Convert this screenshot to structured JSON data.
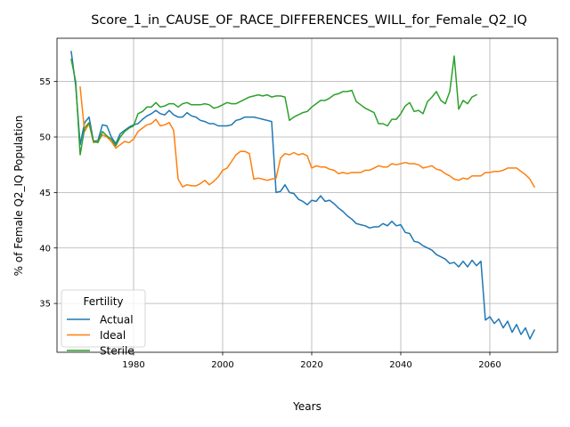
{
  "chart_data": {
    "type": "line",
    "title": "Score_1_in_CAUSE_OF_RACE_DIFFERENCES_WILL_for_Female_Q2_IQ",
    "xlabel": "Years",
    "ylabel": "% of Female Q2_IQ Population",
    "xlim": [
      1962.8,
      2075.2
    ],
    "ylim": [
      30.6,
      58.9
    ],
    "xticks": [
      1980,
      2000,
      2020,
      2040,
      2060
    ],
    "yticks": [
      35,
      40,
      45,
      50,
      55
    ],
    "grid": true,
    "legend": {
      "title": "Fertility",
      "placement": "lower-left"
    },
    "series": [
      {
        "name": "Actual",
        "color": "#1f77b4",
        "points": [
          [
            1966,
            57.7
          ],
          [
            1967,
            54.6
          ],
          [
            1968,
            49.3
          ],
          [
            1969,
            51.3
          ],
          [
            1970,
            51.8
          ],
          [
            1971,
            49.6
          ],
          [
            1972,
            49.7
          ],
          [
            1973,
            51.1
          ],
          [
            1974,
            51.0
          ],
          [
            1975,
            50.0
          ],
          [
            1976,
            49.4
          ],
          [
            1977,
            50.3
          ],
          [
            1978,
            50.6
          ],
          [
            1979,
            50.9
          ],
          [
            1980,
            51.1
          ],
          [
            1981,
            51.2
          ],
          [
            1982,
            51.6
          ],
          [
            1983,
            51.9
          ],
          [
            1984,
            52.1
          ],
          [
            1985,
            52.4
          ],
          [
            1986,
            52.1
          ],
          [
            1987,
            52.0
          ],
          [
            1988,
            52.4
          ],
          [
            1989,
            52.0
          ],
          [
            1990,
            51.8
          ],
          [
            1991,
            51.8
          ],
          [
            1992,
            52.2
          ],
          [
            1993,
            51.9
          ],
          [
            1994,
            51.8
          ],
          [
            1995,
            51.5
          ],
          [
            1996,
            51.4
          ],
          [
            1997,
            51.2
          ],
          [
            1998,
            51.2
          ],
          [
            1999,
            51.0
          ],
          [
            2000,
            51.0
          ],
          [
            2001,
            51.0
          ],
          [
            2002,
            51.1
          ],
          [
            2003,
            51.5
          ],
          [
            2004,
            51.6
          ],
          [
            2005,
            51.8
          ],
          [
            2006,
            51.8
          ],
          [
            2007,
            51.8
          ],
          [
            2008,
            51.7
          ],
          [
            2009,
            51.6
          ],
          [
            2010,
            51.5
          ],
          [
            2011,
            51.4
          ],
          [
            2012,
            45.0
          ],
          [
            2013,
            45.1
          ],
          [
            2014,
            45.7
          ],
          [
            2015,
            45.0
          ],
          [
            2016,
            44.9
          ],
          [
            2017,
            44.4
          ],
          [
            2018,
            44.2
          ],
          [
            2019,
            43.9
          ],
          [
            2020,
            44.3
          ],
          [
            2021,
            44.2
          ],
          [
            2022,
            44.7
          ],
          [
            2023,
            44.2
          ],
          [
            2024,
            44.3
          ],
          [
            2025,
            44.0
          ],
          [
            2026,
            43.6
          ],
          [
            2027,
            43.3
          ],
          [
            2028,
            42.9
          ],
          [
            2029,
            42.6
          ],
          [
            2030,
            42.2
          ],
          [
            2031,
            42.1
          ],
          [
            2032,
            42.0
          ],
          [
            2033,
            41.8
          ],
          [
            2034,
            41.9
          ],
          [
            2035,
            41.9
          ],
          [
            2036,
            42.2
          ],
          [
            2037,
            42.0
          ],
          [
            2038,
            42.4
          ],
          [
            2039,
            42.0
          ],
          [
            2040,
            42.1
          ],
          [
            2041,
            41.4
          ],
          [
            2042,
            41.3
          ],
          [
            2043,
            40.6
          ],
          [
            2044,
            40.5
          ],
          [
            2045,
            40.2
          ],
          [
            2046,
            40.0
          ],
          [
            2047,
            39.8
          ],
          [
            2048,
            39.4
          ],
          [
            2049,
            39.2
          ],
          [
            2050,
            39.0
          ],
          [
            2051,
            38.6
          ],
          [
            2052,
            38.7
          ],
          [
            2053,
            38.3
          ],
          [
            2054,
            38.8
          ],
          [
            2055,
            38.3
          ],
          [
            2056,
            38.9
          ],
          [
            2057,
            38.4
          ],
          [
            2058,
            38.8
          ],
          [
            2059,
            33.5
          ],
          [
            2060,
            33.8
          ],
          [
            2061,
            33.2
          ],
          [
            2062,
            33.6
          ],
          [
            2063,
            32.8
          ],
          [
            2064,
            33.4
          ],
          [
            2065,
            32.4
          ],
          [
            2066,
            33.1
          ],
          [
            2067,
            32.2
          ],
          [
            2068,
            32.8
          ],
          [
            2069,
            31.8
          ],
          [
            2070,
            32.6
          ]
        ]
      },
      {
        "name": "Ideal",
        "color": "#ff7f0e",
        "points": [
          [
            1968,
            54.5
          ],
          [
            1969,
            50.5
          ],
          [
            1970,
            51.2
          ],
          [
            1971,
            49.5
          ],
          [
            1972,
            49.6
          ],
          [
            1973,
            50.2
          ],
          [
            1974,
            50.0
          ],
          [
            1975,
            49.6
          ],
          [
            1976,
            49.0
          ],
          [
            1977,
            49.3
          ],
          [
            1978,
            49.6
          ],
          [
            1979,
            49.5
          ],
          [
            1980,
            49.8
          ],
          [
            1981,
            50.5
          ],
          [
            1982,
            50.8
          ],
          [
            1983,
            51.1
          ],
          [
            1984,
            51.2
          ],
          [
            1985,
            51.6
          ],
          [
            1986,
            51.0
          ],
          [
            1987,
            51.1
          ],
          [
            1988,
            51.3
          ],
          [
            1989,
            50.6
          ],
          [
            1990,
            46.2
          ],
          [
            1991,
            45.5
          ],
          [
            1992,
            45.7
          ],
          [
            1993,
            45.6
          ],
          [
            1994,
            45.6
          ],
          [
            1995,
            45.8
          ],
          [
            1996,
            46.1
          ],
          [
            1997,
            45.7
          ],
          [
            1998,
            46.0
          ],
          [
            1999,
            46.4
          ],
          [
            2000,
            47.0
          ],
          [
            2001,
            47.2
          ],
          [
            2002,
            47.8
          ],
          [
            2003,
            48.4
          ],
          [
            2004,
            48.7
          ],
          [
            2005,
            48.7
          ],
          [
            2006,
            48.5
          ],
          [
            2007,
            46.2
          ],
          [
            2008,
            46.3
          ],
          [
            2009,
            46.2
          ],
          [
            2010,
            46.1
          ],
          [
            2011,
            46.2
          ],
          [
            2012,
            46.3
          ],
          [
            2013,
            48.1
          ],
          [
            2014,
            48.5
          ],
          [
            2015,
            48.4
          ],
          [
            2016,
            48.6
          ],
          [
            2017,
            48.4
          ],
          [
            2018,
            48.5
          ],
          [
            2019,
            48.3
          ],
          [
            2020,
            47.2
          ],
          [
            2021,
            47.4
          ],
          [
            2022,
            47.3
          ],
          [
            2023,
            47.3
          ],
          [
            2024,
            47.1
          ],
          [
            2025,
            47.0
          ],
          [
            2026,
            46.7
          ],
          [
            2027,
            46.8
          ],
          [
            2028,
            46.7
          ],
          [
            2029,
            46.8
          ],
          [
            2030,
            46.8
          ],
          [
            2031,
            46.8
          ],
          [
            2032,
            47.0
          ],
          [
            2033,
            47.0
          ],
          [
            2034,
            47.2
          ],
          [
            2035,
            47.4
          ],
          [
            2036,
            47.3
          ],
          [
            2037,
            47.3
          ],
          [
            2038,
            47.6
          ],
          [
            2039,
            47.5
          ],
          [
            2040,
            47.6
          ],
          [
            2041,
            47.7
          ],
          [
            2042,
            47.6
          ],
          [
            2043,
            47.6
          ],
          [
            2044,
            47.5
          ],
          [
            2045,
            47.2
          ],
          [
            2046,
            47.3
          ],
          [
            2047,
            47.4
          ],
          [
            2048,
            47.1
          ],
          [
            2049,
            47.0
          ],
          [
            2050,
            46.7
          ],
          [
            2051,
            46.5
          ],
          [
            2052,
            46.2
          ],
          [
            2053,
            46.1
          ],
          [
            2054,
            46.3
          ],
          [
            2055,
            46.2
          ],
          [
            2056,
            46.5
          ],
          [
            2057,
            46.5
          ],
          [
            2058,
            46.5
          ],
          [
            2059,
            46.8
          ],
          [
            2060,
            46.8
          ],
          [
            2061,
            46.9
          ],
          [
            2062,
            46.9
          ],
          [
            2063,
            47.0
          ],
          [
            2064,
            47.2
          ],
          [
            2065,
            47.2
          ],
          [
            2066,
            47.2
          ],
          [
            2067,
            46.9
          ],
          [
            2068,
            46.6
          ],
          [
            2069,
            46.2
          ],
          [
            2070,
            45.5
          ]
        ]
      },
      {
        "name": "Sterile",
        "color": "#2ca02c",
        "points": [
          [
            1966,
            57.0
          ],
          [
            1967,
            55.0
          ],
          [
            1968,
            48.4
          ],
          [
            1969,
            50.8
          ],
          [
            1970,
            51.3
          ],
          [
            1971,
            49.6
          ],
          [
            1972,
            49.5
          ],
          [
            1973,
            50.5
          ],
          [
            1974,
            50.1
          ],
          [
            1975,
            49.8
          ],
          [
            1976,
            49.2
          ],
          [
            1977,
            50.0
          ],
          [
            1978,
            50.5
          ],
          [
            1979,
            50.8
          ],
          [
            1980,
            51.0
          ],
          [
            1981,
            52.1
          ],
          [
            1982,
            52.3
          ],
          [
            1983,
            52.7
          ],
          [
            1984,
            52.7
          ],
          [
            1985,
            53.1
          ],
          [
            1986,
            52.7
          ],
          [
            1987,
            52.8
          ],
          [
            1988,
            53.0
          ],
          [
            1989,
            53.0
          ],
          [
            1990,
            52.7
          ],
          [
            1991,
            53.0
          ],
          [
            1992,
            53.1
          ],
          [
            1993,
            52.9
          ],
          [
            1994,
            52.9
          ],
          [
            1995,
            52.9
          ],
          [
            1996,
            53.0
          ],
          [
            1997,
            52.9
          ],
          [
            1998,
            52.6
          ],
          [
            1999,
            52.7
          ],
          [
            2000,
            52.9
          ],
          [
            2001,
            53.1
          ],
          [
            2002,
            53.0
          ],
          [
            2003,
            53.0
          ],
          [
            2004,
            53.2
          ],
          [
            2005,
            53.4
          ],
          [
            2006,
            53.6
          ],
          [
            2007,
            53.7
          ],
          [
            2008,
            53.8
          ],
          [
            2009,
            53.7
          ],
          [
            2010,
            53.8
          ],
          [
            2011,
            53.6
          ],
          [
            2012,
            53.7
          ],
          [
            2013,
            53.7
          ],
          [
            2014,
            53.6
          ],
          [
            2015,
            51.5
          ],
          [
            2016,
            51.8
          ],
          [
            2017,
            52.0
          ],
          [
            2018,
            52.2
          ],
          [
            2019,
            52.3
          ],
          [
            2020,
            52.7
          ],
          [
            2021,
            53.0
          ],
          [
            2022,
            53.3
          ],
          [
            2023,
            53.3
          ],
          [
            2024,
            53.5
          ],
          [
            2025,
            53.8
          ],
          [
            2026,
            53.9
          ],
          [
            2027,
            54.1
          ],
          [
            2028,
            54.1
          ],
          [
            2029,
            54.2
          ],
          [
            2030,
            53.2
          ],
          [
            2031,
            52.9
          ],
          [
            2032,
            52.6
          ],
          [
            2033,
            52.4
          ],
          [
            2034,
            52.2
          ],
          [
            2035,
            51.2
          ],
          [
            2036,
            51.2
          ],
          [
            2037,
            51.0
          ],
          [
            2038,
            51.6
          ],
          [
            2039,
            51.6
          ],
          [
            2040,
            52.1
          ],
          [
            2041,
            52.8
          ],
          [
            2042,
            53.1
          ],
          [
            2043,
            52.3
          ],
          [
            2044,
            52.4
          ],
          [
            2045,
            52.1
          ],
          [
            2046,
            53.2
          ],
          [
            2047,
            53.6
          ],
          [
            2048,
            54.1
          ],
          [
            2049,
            53.3
          ],
          [
            2050,
            53.0
          ],
          [
            2051,
            54.1
          ],
          [
            2052,
            57.3
          ],
          [
            2053,
            52.5
          ],
          [
            2054,
            53.3
          ],
          [
            2055,
            53.0
          ],
          [
            2056,
            53.6
          ],
          [
            2057,
            53.8
          ]
        ]
      }
    ]
  }
}
